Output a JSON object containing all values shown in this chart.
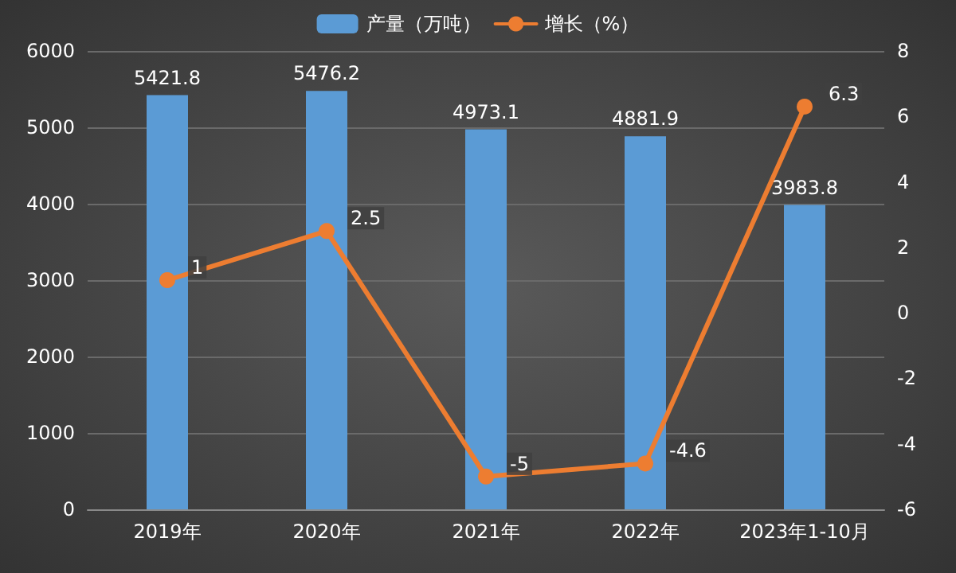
{
  "chart_data": {
    "type": "bar",
    "categories": [
      "2019年",
      "2020年",
      "2021年",
      "2022年",
      "2023年1-10月"
    ],
    "series": [
      {
        "name": "产量（万吨）",
        "color": "#5b9bd5",
        "values": [
          5421.8,
          5476.2,
          4973.1,
          4881.9,
          3983.8
        ]
      },
      {
        "name": "增长（%）",
        "type": "line",
        "axis": "y2",
        "color": "#ed7d31",
        "values": [
          1,
          2.5,
          -5,
          -4.6,
          6.3
        ]
      }
    ],
    "ylim": [
      0,
      6000
    ],
    "yticks": [
      0,
      1000,
      2000,
      3000,
      4000,
      5000,
      6000
    ],
    "y2lim": [
      -6,
      8
    ],
    "y2ticks": [
      -6,
      -4,
      -2,
      0,
      2,
      4,
      6,
      8
    ],
    "grid": "y",
    "legend": "top",
    "marker": "circle",
    "line_style": "solid",
    "data_labels": true
  }
}
